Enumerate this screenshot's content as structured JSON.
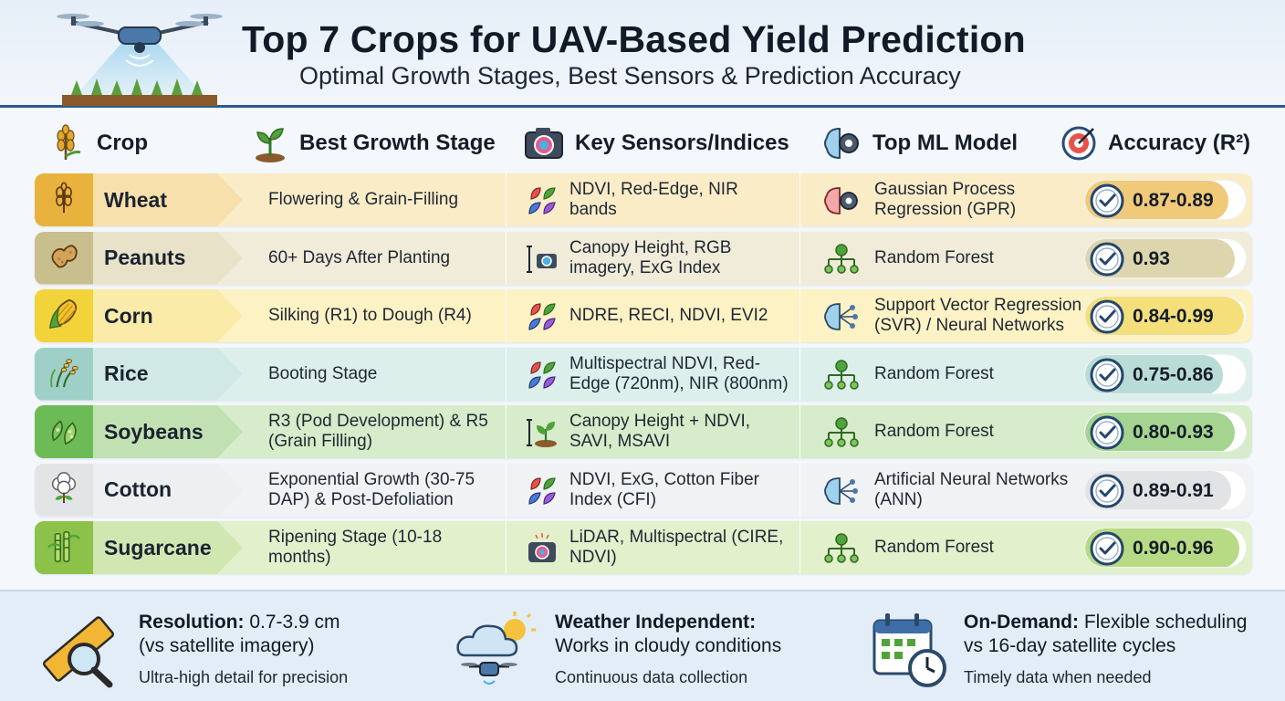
{
  "header": {
    "title": "Top 7 Crops for UAV-Based Yield Prediction",
    "subtitle": "Optimal Growth Stages, Best Sensors & Prediction Accuracy"
  },
  "columns": {
    "crop": "Crop",
    "stage": "Best Growth Stage",
    "sensors": "Key Sensors/Indices",
    "model": "Top ML Model",
    "accuracy": "Accuracy (R²)"
  },
  "rows": [
    {
      "crop": "Wheat",
      "stage": "Flowering & Grain-Filling",
      "sensors": "NDVI, Red-Edge, NIR bands",
      "model": "Gaussian Process Regression (GPR)",
      "accuracy": "0.87-0.89",
      "accuracy_level": 0.89,
      "color": "#e9b23c",
      "tint": "#fbecc8",
      "fill": "#f0c979",
      "crop_icon": "wheat-icon",
      "sensor_icon": "leaves-icon",
      "model_icon": "brain-gear-icon"
    },
    {
      "crop": "Peanuts",
      "stage": "60+ Days After Planting",
      "sensors": "Canopy Height, RGB imagery, ExG Index",
      "model": "Random Forest",
      "accuracy": "0.93",
      "accuracy_level": 0.93,
      "color": "#c9bf8e",
      "tint": "#f0ecd9",
      "fill": "#dcd5ad",
      "crop_icon": "peanut-icon",
      "sensor_icon": "camera-height-icon",
      "model_icon": "tree-diagram-icon"
    },
    {
      "crop": "Corn",
      "stage": "Silking (R1) to Dough (R4)",
      "sensors": "NDRE, RECI, NDVI, EVI2",
      "model": "Support Vector Regression (SVR) / Neural Networks",
      "accuracy": "0.84-0.99",
      "accuracy_level": 0.99,
      "color": "#f3d33a",
      "tint": "#fcf2c4",
      "fill": "#f5df7a",
      "crop_icon": "corn-icon",
      "sensor_icon": "leaves-icon",
      "model_icon": "brain-network-icon"
    },
    {
      "crop": "Rice",
      "stage": "Booting Stage",
      "sensors": "Multispectral NDVI, Red-Edge (720nm), NIR (800nm)",
      "model": "Random Forest",
      "accuracy": "0.75-0.86",
      "accuracy_level": 0.86,
      "color": "#9fd0c8",
      "tint": "#dcefeb",
      "fill": "#b9ddd6",
      "crop_icon": "rice-icon",
      "sensor_icon": "leaves-icon",
      "model_icon": "tree-diagram-icon"
    },
    {
      "crop": "Soybeans",
      "stage": "R3 (Pod Development) & R5 (Grain Filling)",
      "sensors": "Canopy Height + NDVI, SAVI, MSAVI",
      "model": "Random Forest",
      "accuracy": "0.80-0.93",
      "accuracy_level": 0.93,
      "color": "#6dbb57",
      "tint": "#d6ecca",
      "fill": "#a4d48f",
      "crop_icon": "soybean-icon",
      "sensor_icon": "sprout-height-icon",
      "model_icon": "tree-diagram-icon"
    },
    {
      "crop": "Cotton",
      "stage": "Exponential Growth (30-75 DAP) & Post-Defoliation",
      "sensors": "NDVI, ExG, Cotton Fiber Index (CFI)",
      "model": "Artificial Neural Networks (ANN)",
      "accuracy": "0.89-0.91",
      "accuracy_level": 0.91,
      "color": "#e3e4e6",
      "tint": "#f1f2f3",
      "fill": "#e2e3e5",
      "crop_icon": "cotton-icon",
      "sensor_icon": "leaves-icon",
      "model_icon": "brain-network-icon"
    },
    {
      "crop": "Sugarcane",
      "stage": "Ripening Stage (10-18 months)",
      "sensors": "LiDAR, Multispectral (CIRE, NDVI)",
      "model": "Random Forest",
      "accuracy": "0.90-0.96",
      "accuracy_level": 0.96,
      "color": "#8cc24a",
      "tint": "#e2f0cc",
      "fill": "#b7da84",
      "crop_icon": "sugarcane-icon",
      "sensor_icon": "camera-icon",
      "model_icon": "tree-diagram-icon"
    }
  ],
  "footer": [
    {
      "bold": "Resolution:",
      "rest": " 0.7-3.9 cm",
      "line2": "(vs satellite imagery)",
      "note": "Ultra-high detail for precision",
      "icon": "ruler-magnifier-icon"
    },
    {
      "bold": "Weather Independent:",
      "rest": "",
      "line2": "Works in cloudy conditions",
      "note": "Continuous data collection",
      "icon": "cloud-drone-icon"
    },
    {
      "bold": "On-Demand:",
      "rest": " Flexible scheduling",
      "line2": "vs 16-day satellite cycles",
      "note": "Timely data when needed",
      "icon": "calendar-clock-icon"
    }
  ]
}
